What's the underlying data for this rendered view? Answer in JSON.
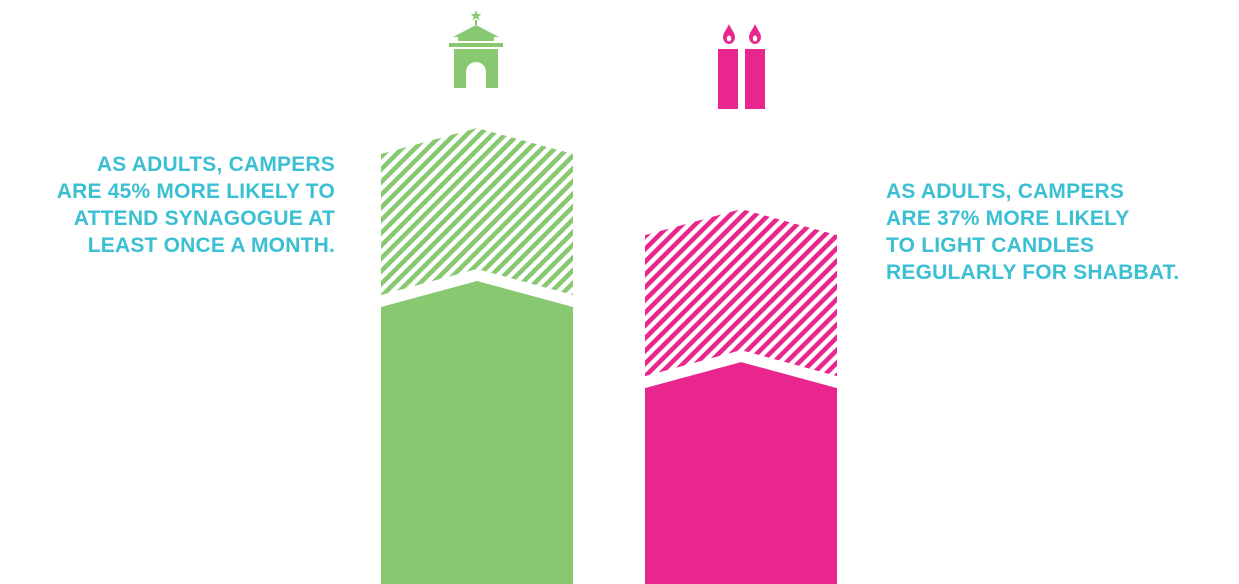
{
  "colors": {
    "text": "#3bbfd3",
    "synagogue": "#88c870",
    "candles": "#e8268e",
    "background": "#ffffff"
  },
  "icons": {
    "synagogue": "synagogue-icon",
    "candles": "shabbat-candles-icon"
  },
  "stats": {
    "left": {
      "lines": [
        "AS ADULTS, CAMPERS",
        "ARE 45% MORE LIKELY TO",
        "ATTEND SYNAGOGUE AT",
        "LEAST ONCE A MONTH."
      ]
    },
    "right": {
      "lines": [
        "AS ADULTS, CAMPERS",
        "ARE 37% MORE LIKELY",
        "TO LIGHT CANDLES",
        "REGULARLY FOR SHABBAT."
      ]
    }
  },
  "chart_data": {
    "type": "bar",
    "categories": [
      "Attend synagogue at least once a month",
      "Light candles regularly for Shabbat"
    ],
    "series": [
      {
        "values": [
          45,
          37
        ],
        "unit": "%"
      }
    ],
    "colors": [
      "#88c870",
      "#e8268e"
    ],
    "hatched_segment": true,
    "ylim": [
      0,
      45
    ]
  }
}
